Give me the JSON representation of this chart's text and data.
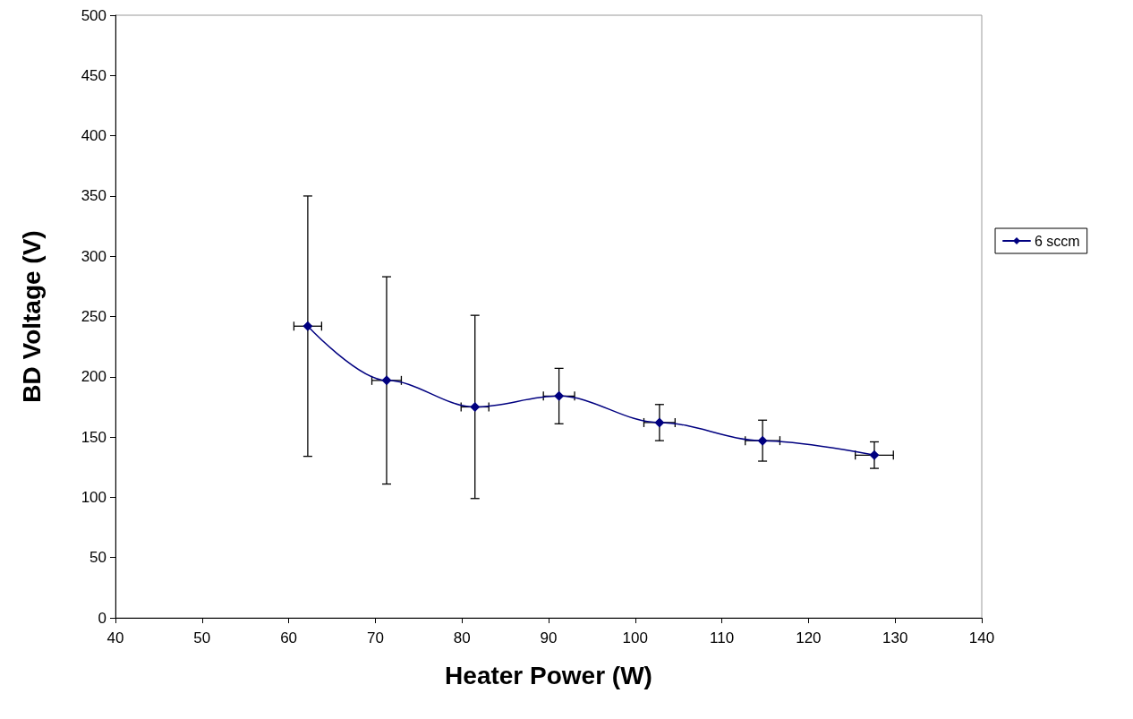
{
  "chart_data": {
    "type": "line",
    "xlabel": "Heater Power (W)",
    "ylabel": "BD Voltage (V)",
    "x": [
      62.2,
      71.3,
      81.5,
      91.2,
      102.8,
      114.7,
      127.6
    ],
    "series": [
      {
        "name": "6 sccm",
        "color": "#000080",
        "values": [
          242,
          197,
          175,
          184,
          162,
          147,
          135
        ],
        "errors": [
          108,
          86,
          76,
          23,
          15,
          17,
          11
        ],
        "xerrors": [
          1.6,
          1.7,
          1.6,
          1.8,
          1.8,
          2.0,
          2.2
        ]
      }
    ],
    "xlim": [
      40,
      140
    ],
    "xticks": [
      40,
      50,
      60,
      70,
      80,
      90,
      100,
      110,
      120,
      130,
      140
    ],
    "ylim": [
      0,
      500
    ],
    "yticks": [
      0,
      50,
      100,
      150,
      200,
      250,
      300,
      350,
      400,
      450,
      500
    ],
    "grid": false,
    "legend": "right",
    "marker": "diamond",
    "line_style": "solid"
  }
}
